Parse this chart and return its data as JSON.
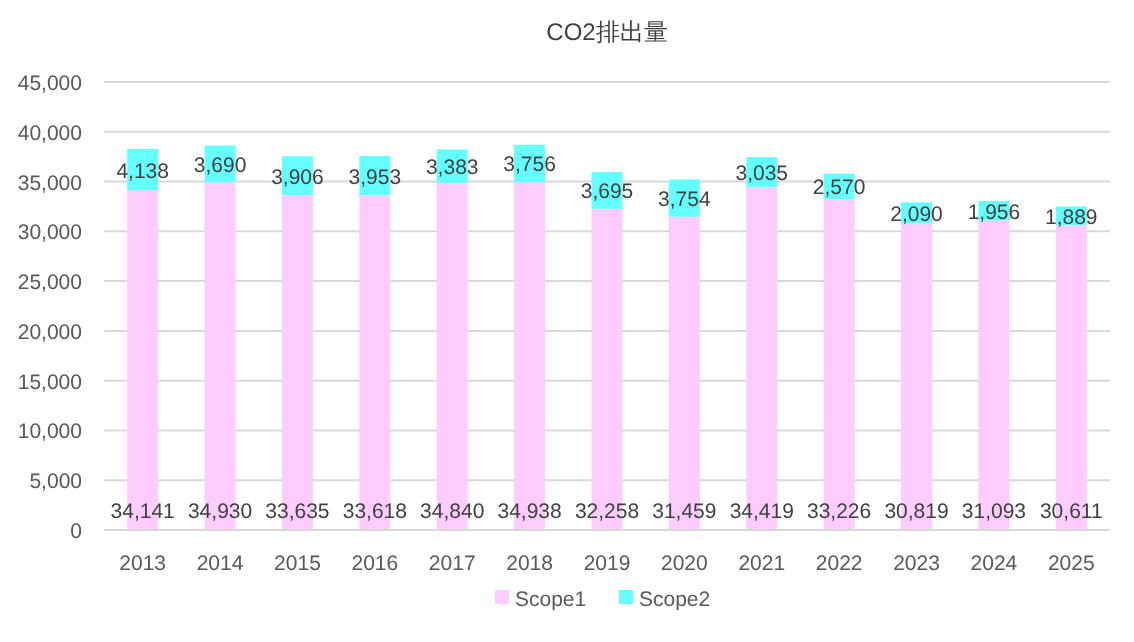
{
  "chart_data": {
    "type": "bar",
    "title": "CO2排出量",
    "stacked": true,
    "categories": [
      "2013",
      "2014",
      "2015",
      "2016",
      "2017",
      "2018",
      "2019",
      "2020",
      "2021",
      "2022",
      "2023",
      "2024",
      "2025"
    ],
    "series": [
      {
        "name": "Scope1",
        "color": "#ffccff",
        "values": [
          34141,
          34930,
          33635,
          33618,
          34840,
          34938,
          32258,
          31459,
          34419,
          33226,
          30819,
          31093,
          30611
        ],
        "value_labels": [
          "34,141",
          "34,930",
          "33,635",
          "33,618",
          "34,840",
          "34,938",
          "32,258",
          "31,459",
          "34,419",
          "33,226",
          "30,819",
          "31,093",
          "30,611"
        ]
      },
      {
        "name": "Scope2",
        "color": "#66ffff",
        "values": [
          4138,
          3690,
          3906,
          3953,
          3383,
          3756,
          3695,
          3754,
          3035,
          2570,
          2090,
          1956,
          1889
        ],
        "value_labels": [
          "4,138",
          "3,690",
          "3,906",
          "3,953",
          "3,383",
          "3,756",
          "3,695",
          "3,754",
          "3,035",
          "2,570",
          "2,090",
          "1,956",
          "1,889"
        ]
      }
    ],
    "ylim": [
      0,
      45000
    ],
    "yticks": [
      {
        "value": 0,
        "label": "0"
      },
      {
        "value": 5000,
        "label": "5,000"
      },
      {
        "value": 10000,
        "label": "10,000"
      },
      {
        "value": 15000,
        "label": "15,000"
      },
      {
        "value": 20000,
        "label": "20,000"
      },
      {
        "value": 25000,
        "label": "25,000"
      },
      {
        "value": 30000,
        "label": "30,000"
      },
      {
        "value": 35000,
        "label": "35,000"
      },
      {
        "value": 40000,
        "label": "40,000"
      },
      {
        "value": 45000,
        "label": "45,000"
      }
    ],
    "grid": "y",
    "legend": "bottom"
  }
}
